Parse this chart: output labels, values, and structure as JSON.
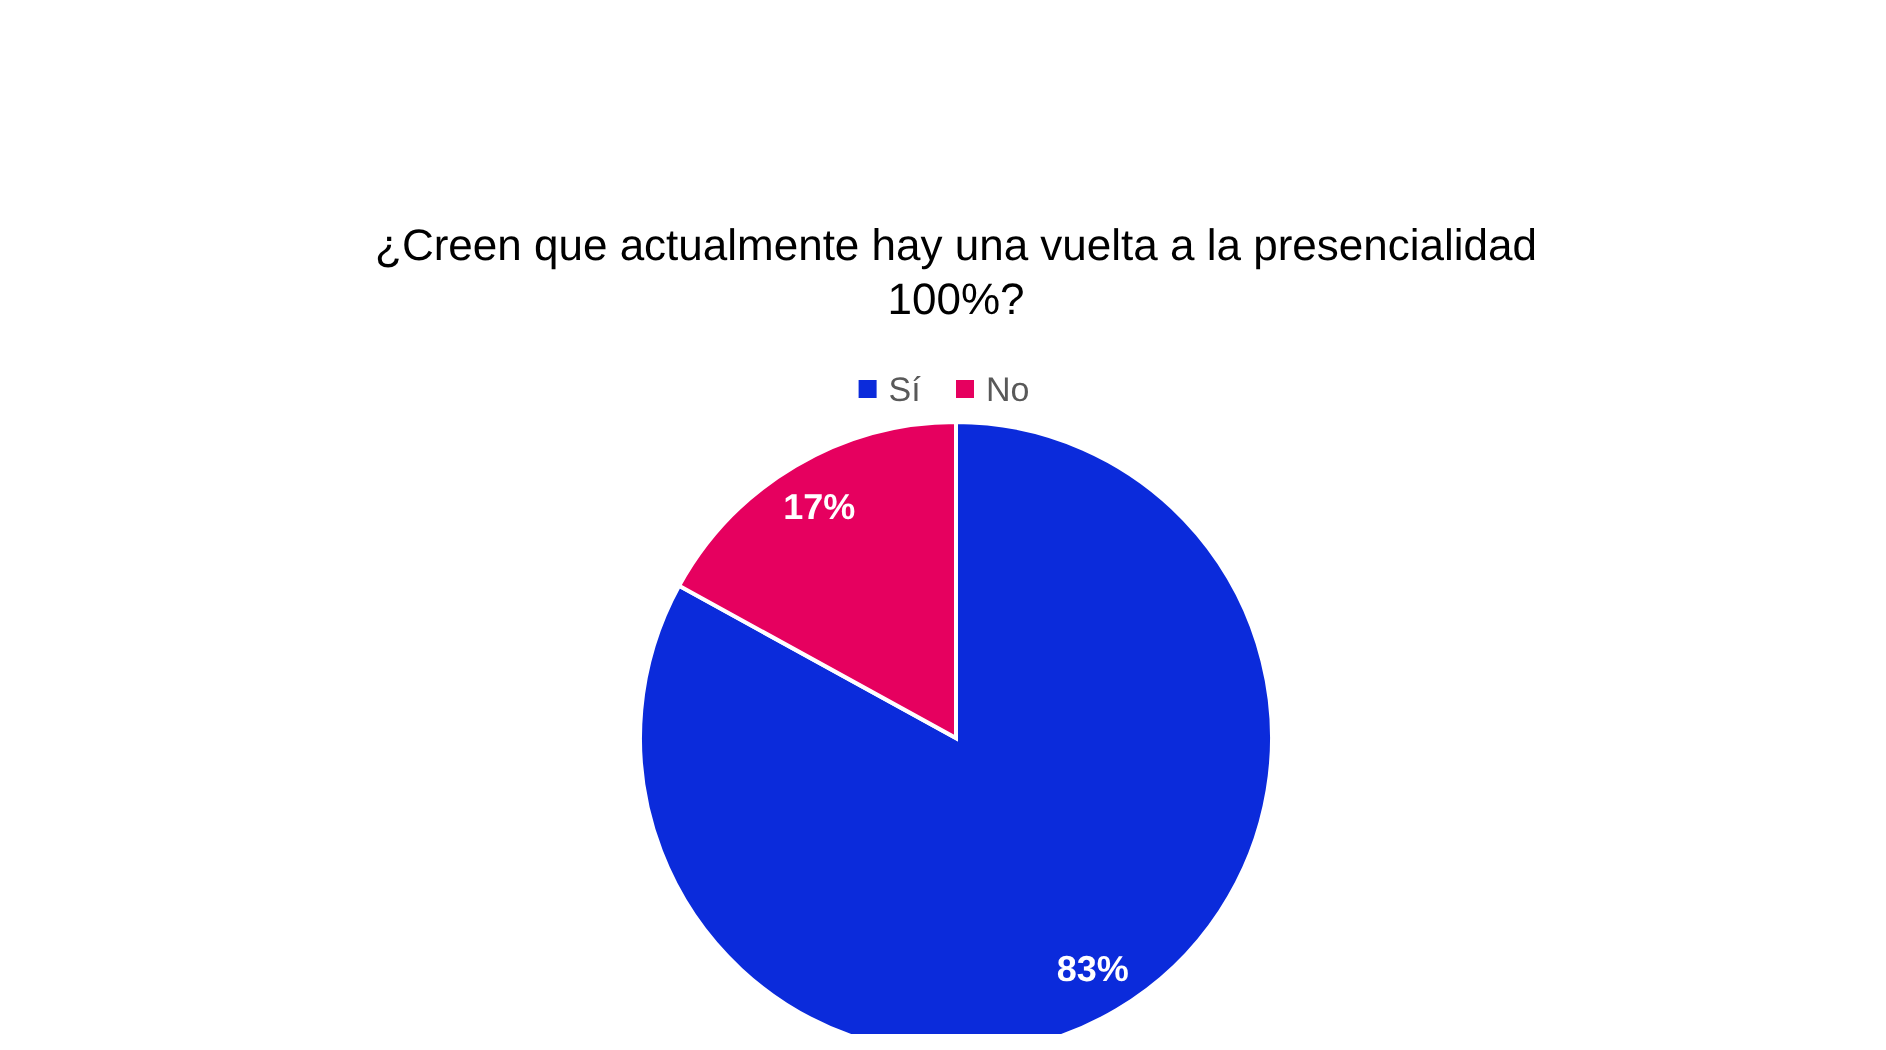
{
  "chart_data": {
    "type": "pie",
    "title": "¿Creen que actualmente hay una vuelta a la presencialidad 100%?",
    "categories": [
      "Sí",
      "No"
    ],
    "values": [
      83,
      17
    ],
    "colors": [
      "#0b2bdb",
      "#e6005f"
    ],
    "value_labels": [
      "83%",
      "17%"
    ],
    "legend": "top"
  }
}
